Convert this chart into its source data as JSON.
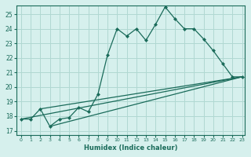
{
  "xlabel": "Humidex (Indice chaleur)",
  "ylabel": "",
  "bg_color": "#d6f0ed",
  "grid_color": "#b0d8d2",
  "line_color": "#1a6b5a",
  "xlim": [
    -0.5,
    23.3
  ],
  "ylim": [
    16.7,
    25.6
  ],
  "xticks": [
    0,
    1,
    2,
    3,
    4,
    5,
    6,
    7,
    8,
    9,
    10,
    11,
    12,
    13,
    14,
    15,
    16,
    17,
    18,
    19,
    20,
    21,
    22,
    23
  ],
  "yticks": [
    17,
    18,
    19,
    20,
    21,
    22,
    23,
    24,
    25
  ],
  "line1_x": [
    0,
    1,
    2,
    3,
    4,
    5,
    6,
    7,
    8,
    9,
    10,
    11,
    12,
    13,
    14,
    15,
    16,
    17,
    18,
    19,
    20,
    21,
    22,
    23
  ],
  "line1_y": [
    17.8,
    17.8,
    18.5,
    17.3,
    17.8,
    17.9,
    18.6,
    18.3,
    19.5,
    22.2,
    24.0,
    23.5,
    24.0,
    23.2,
    24.3,
    25.5,
    24.7,
    24.0,
    24.0,
    23.3,
    22.5,
    21.6,
    20.7,
    20.7
  ],
  "line2_x": [
    0,
    23
  ],
  "line2_y": [
    17.8,
    20.7
  ],
  "line3_x": [
    2,
    23
  ],
  "line3_y": [
    18.5,
    20.7
  ],
  "line4_x": [
    3,
    23
  ],
  "line4_y": [
    17.3,
    20.7
  ]
}
